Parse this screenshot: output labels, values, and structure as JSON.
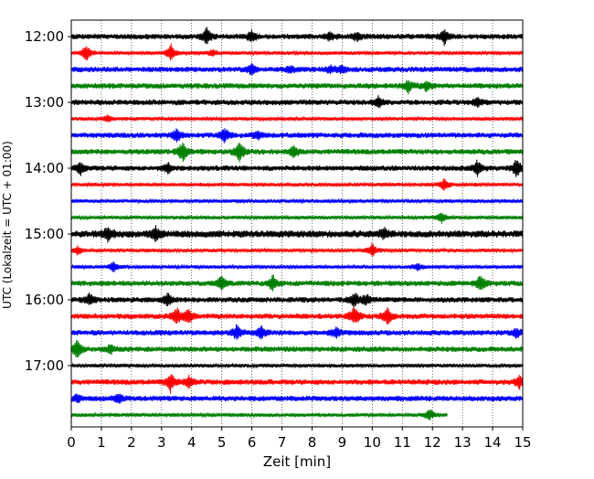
{
  "chart_data": {
    "type": "line",
    "title": "",
    "xlabel": "Zeit  [min]",
    "ylabel": "UTC (Lokalzeit = UTC + 01:00)",
    "xlim": [
      0,
      15
    ],
    "xticks": [
      "0",
      "1",
      "2",
      "3",
      "4",
      "5",
      "6",
      "7",
      "8",
      "9",
      "10",
      "11",
      "12",
      "13",
      "14",
      "15"
    ],
    "ytick_labels": [
      "12:00",
      "13:00",
      "14:00",
      "15:00",
      "16:00",
      "17:00"
    ],
    "ytick_rows": [
      0,
      4,
      8,
      12,
      16,
      20
    ],
    "grid": "vertical-dotted",
    "start_time": "12:00",
    "row_interval_min": 15,
    "colors": [
      "#000000",
      "#ff0000",
      "#0000ff",
      "#008000"
    ],
    "rows": [
      {
        "time": "12:00",
        "color": "#000000",
        "end_min": 15,
        "amp": 3,
        "events": [
          [
            4.5,
            9
          ],
          [
            6.0,
            6
          ],
          [
            8.6,
            5
          ],
          [
            9.5,
            5
          ],
          [
            12.4,
            9
          ]
        ]
      },
      {
        "time": "12:15",
        "color": "#ff0000",
        "end_min": 15,
        "amp": 2,
        "events": [
          [
            0.5,
            9
          ],
          [
            3.3,
            10
          ],
          [
            4.7,
            4
          ]
        ]
      },
      {
        "time": "12:30",
        "color": "#0000ff",
        "end_min": 15,
        "amp": 3,
        "events": [
          [
            6.0,
            6
          ],
          [
            7.3,
            4
          ],
          [
            8.6,
            4
          ],
          [
            9.0,
            4
          ]
        ]
      },
      {
        "time": "12:45",
        "color": "#008000",
        "end_min": 15,
        "amp": 3,
        "events": [
          [
            11.2,
            8
          ],
          [
            11.8,
            5
          ]
        ]
      },
      {
        "time": "13:00",
        "color": "#000000",
        "end_min": 15,
        "amp": 3,
        "events": [
          [
            10.2,
            6
          ],
          [
            13.5,
            5
          ]
        ]
      },
      {
        "time": "13:15",
        "color": "#ff0000",
        "end_min": 15,
        "amp": 2,
        "events": [
          [
            1.2,
            4
          ]
        ]
      },
      {
        "time": "13:30",
        "color": "#0000ff",
        "end_min": 15,
        "amp": 3,
        "events": [
          [
            3.5,
            8
          ],
          [
            5.1,
            9
          ],
          [
            6.2,
            5
          ]
        ]
      },
      {
        "time": "13:45",
        "color": "#008000",
        "end_min": 15,
        "amp": 3,
        "events": [
          [
            3.7,
            12
          ],
          [
            5.6,
            13
          ],
          [
            7.4,
            7
          ]
        ]
      },
      {
        "time": "14:00",
        "color": "#000000",
        "end_min": 15,
        "amp": 3,
        "events": [
          [
            0.3,
            7
          ],
          [
            3.2,
            6
          ],
          [
            13.5,
            9
          ],
          [
            14.8,
            10
          ]
        ]
      },
      {
        "time": "14:15",
        "color": "#ff0000",
        "end_min": 15,
        "amp": 2,
        "events": [
          [
            12.4,
            8
          ]
        ]
      },
      {
        "time": "14:30",
        "color": "#0000ff",
        "end_min": 15,
        "amp": 2,
        "events": []
      },
      {
        "time": "14:45",
        "color": "#008000",
        "end_min": 15,
        "amp": 2,
        "events": [
          [
            12.3,
            6
          ]
        ]
      },
      {
        "time": "15:00",
        "color": "#000000",
        "end_min": 15,
        "amp": 4,
        "events": [
          [
            1.2,
            7
          ],
          [
            2.8,
            9
          ],
          [
            10.4,
            6
          ]
        ]
      },
      {
        "time": "15:15",
        "color": "#ff0000",
        "end_min": 15,
        "amp": 2,
        "events": [
          [
            0.2,
            5
          ],
          [
            10.0,
            8
          ]
        ]
      },
      {
        "time": "15:30",
        "color": "#0000ff",
        "end_min": 15,
        "amp": 2,
        "events": [
          [
            1.4,
            6
          ],
          [
            11.5,
            4
          ]
        ]
      },
      {
        "time": "15:45",
        "color": "#008000",
        "end_min": 15,
        "amp": 3,
        "events": [
          [
            5.0,
            8
          ],
          [
            6.7,
            9
          ],
          [
            13.6,
            10
          ]
        ]
      },
      {
        "time": "16:00",
        "color": "#000000",
        "end_min": 15,
        "amp": 3,
        "events": [
          [
            0.6,
            7
          ],
          [
            3.2,
            7
          ],
          [
            9.4,
            8
          ],
          [
            9.8,
            6
          ]
        ]
      },
      {
        "time": "16:15",
        "color": "#ff0000",
        "end_min": 15,
        "amp": 3,
        "events": [
          [
            3.5,
            10
          ],
          [
            3.9,
            9
          ],
          [
            9.4,
            11
          ],
          [
            10.5,
            10
          ]
        ]
      },
      {
        "time": "16:30",
        "color": "#0000ff",
        "end_min": 15,
        "amp": 3,
        "events": [
          [
            5.5,
            9
          ],
          [
            6.3,
            8
          ],
          [
            8.8,
            6
          ],
          [
            14.8,
            5
          ]
        ]
      },
      {
        "time": "16:45",
        "color": "#008000",
        "end_min": 15,
        "amp": 3,
        "events": [
          [
            0.2,
            12
          ],
          [
            1.3,
            5
          ]
        ]
      },
      {
        "time": "17:00",
        "color": "#000000",
        "end_min": 15,
        "amp": 2,
        "events": []
      },
      {
        "time": "17:15",
        "color": "#ff0000",
        "end_min": 15,
        "amp": 3,
        "events": [
          [
            3.3,
            11
          ],
          [
            3.9,
            7
          ],
          [
            14.9,
            8
          ]
        ]
      },
      {
        "time": "17:30",
        "color": "#0000ff",
        "end_min": 15,
        "amp": 3,
        "events": [
          [
            0.2,
            5
          ],
          [
            1.6,
            6
          ]
        ]
      },
      {
        "time": "17:45",
        "color": "#008000",
        "end_min": 12.5,
        "amp": 2,
        "events": [
          [
            11.9,
            7
          ]
        ]
      }
    ]
  }
}
